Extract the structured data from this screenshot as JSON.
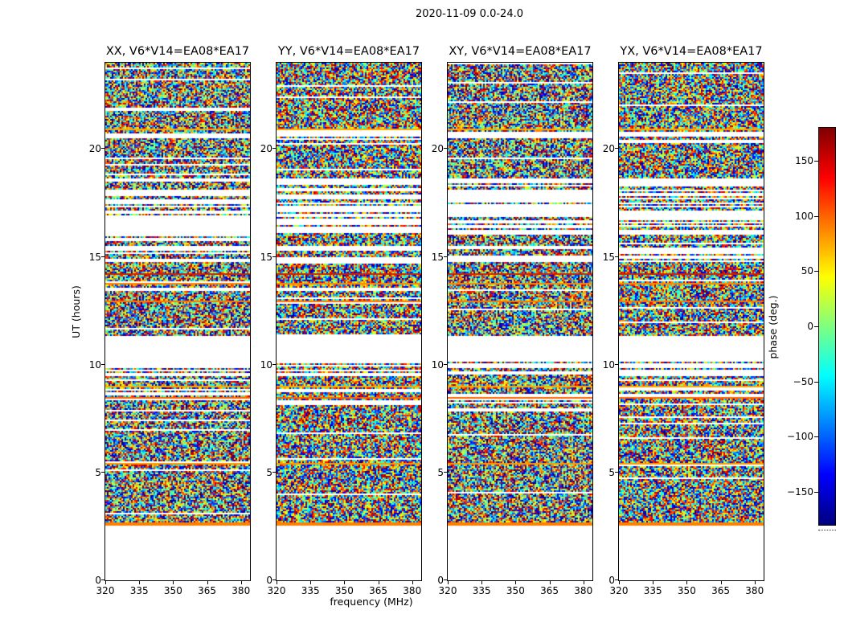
{
  "figure": {
    "title": "2020-11-09 0.0-24.0"
  },
  "axes": {
    "x": {
      "label": "frequency (MHz)",
      "min": 320,
      "max": 384,
      "ticks": [
        {
          "label": "320",
          "value": 320
        },
        {
          "label": "335",
          "value": 335
        },
        {
          "label": "350",
          "value": 350
        },
        {
          "label": "365",
          "value": 365
        },
        {
          "label": "380",
          "value": 380
        }
      ]
    },
    "y": {
      "label": "UT (hours)",
      "min": 0,
      "max": 24,
      "ticks": [
        {
          "label": "0",
          "value": 0
        },
        {
          "label": "5",
          "value": 5
        },
        {
          "label": "10",
          "value": 10
        },
        {
          "label": "15",
          "value": 15
        },
        {
          "label": "20",
          "value": 20
        }
      ]
    }
  },
  "panels": [
    {
      "key": "XX",
      "title": "XX, V6*V14=EA08*EA17"
    },
    {
      "key": "YY",
      "title": "YY, V6*V14=EA08*EA17"
    },
    {
      "key": "XY",
      "title": "XY, V6*V14=EA08*EA17"
    },
    {
      "key": "YX",
      "title": "YX, V6*V14=EA08*EA17"
    }
  ],
  "colorbar": {
    "label": "phase (deg.)",
    "min": -180,
    "max": 180,
    "colormap": "jet",
    "ticks": [
      {
        "label": "150",
        "value": 150
      },
      {
        "label": "100",
        "value": 100
      },
      {
        "label": "50",
        "value": 50
      },
      {
        "label": "0",
        "value": 0
      },
      {
        "label": "−50",
        "value": -50
      },
      {
        "label": "−100",
        "value": -100
      },
      {
        "label": "−150",
        "value": -150
      }
    ]
  },
  "chart_data": {
    "type": "heatmap",
    "title": "2020-11-09 0.0-24.0",
    "panels": [
      "XX, V6*V14=EA08*EA17",
      "YY, V6*V14=EA08*EA17",
      "XY, V6*V14=EA08*EA17",
      "YX, V6*V14=EA08*EA17"
    ],
    "xlabel": "frequency (MHz)",
    "ylabel": "UT (hours)",
    "zlabel": "phase (deg.)",
    "xlim": [
      320,
      384
    ],
    "ylim": [
      0,
      24
    ],
    "zlim": [
      -180,
      180
    ],
    "xticks": [
      320,
      335,
      350,
      365,
      380
    ],
    "yticks": [
      0,
      5,
      10,
      15,
      20
    ],
    "colorbar_ticks": [
      150,
      100,
      50,
      0,
      -50,
      -100,
      -150
    ],
    "colormap": "jet",
    "values": "pseudo-random interferometric fringe phase (uniform -180..180 deg) over frequency channels and time samples; same time-gap structure repeated in all four polarisation panels; white rows = no data",
    "time_coverage_hours": [
      {
        "start": 0,
        "end": 2.55,
        "density": 0
      },
      {
        "start": 2.55,
        "end": 5.3,
        "density": 0.95
      },
      {
        "start": 5.3,
        "end": 5.5,
        "density": 0.5
      },
      {
        "start": 5.5,
        "end": 8.1,
        "density": 0.93
      },
      {
        "start": 8.1,
        "end": 9.1,
        "density": 0.55
      },
      {
        "start": 9.1,
        "end": 9.45,
        "density": 0.9
      },
      {
        "start": 9.45,
        "end": 10.1,
        "density": 0.45
      },
      {
        "start": 10.1,
        "end": 11.3,
        "density": 0
      },
      {
        "start": 11.3,
        "end": 13.4,
        "density": 0.95
      },
      {
        "start": 13.4,
        "end": 13.6,
        "density": 0.4
      },
      {
        "start": 13.6,
        "end": 14.75,
        "density": 0.92
      },
      {
        "start": 14.75,
        "end": 15.05,
        "density": 0.35
      },
      {
        "start": 15.05,
        "end": 15.25,
        "density": 0.85
      },
      {
        "start": 15.25,
        "end": 15.5,
        "density": 0.2
      },
      {
        "start": 15.5,
        "end": 16.0,
        "density": 0.9
      },
      {
        "start": 16.0,
        "end": 18.1,
        "density": 0.3
      },
      {
        "start": 18.1,
        "end": 18.35,
        "density": 0.7
      },
      {
        "start": 18.35,
        "end": 18.6,
        "density": 0.15
      },
      {
        "start": 18.6,
        "end": 20.5,
        "density": 0.92
      },
      {
        "start": 20.5,
        "end": 20.95,
        "density": 0.3
      },
      {
        "start": 20.95,
        "end": 24,
        "density": 0.94
      }
    ],
    "highlight_rows_hours": [
      {
        "hour": 2.62,
        "color": "#ff8000"
      },
      {
        "hour": 5.42,
        "color": "#ff9900"
      },
      {
        "hour": 8.45,
        "color": "#ff6600"
      },
      {
        "hour": 9.0,
        "color": "#ffaa00"
      },
      {
        "hour": 12.95,
        "color": "#ff7700"
      },
      {
        "hour": 13.75,
        "color": "#ff8800"
      },
      {
        "hour": 14.2,
        "color": "#cc2200"
      },
      {
        "hour": 20.9,
        "color": "#ffaa00"
      }
    ]
  }
}
